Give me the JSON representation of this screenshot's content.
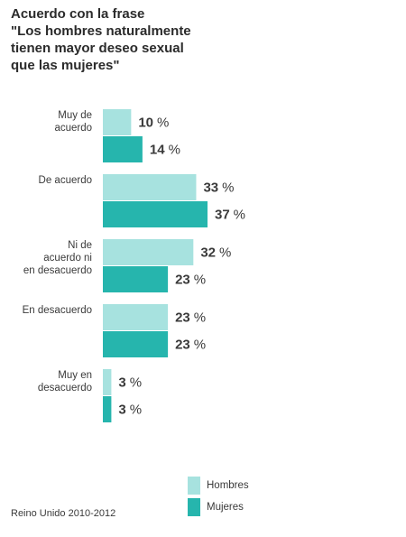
{
  "chart_data": {
    "type": "bar",
    "orientation": "horizontal",
    "title_lines": [
      "Acuerdo con la frase",
      "\"Los hombres naturalmente",
      "tienen mayor deseo sexual",
      "que las mujeres\""
    ],
    "categories": [
      [
        "Muy de",
        "acuerdo"
      ],
      [
        "De acuerdo"
      ],
      [
        "Ni de",
        "acuerdo ni",
        "en desacuerdo"
      ],
      [
        "En desacuerdo"
      ],
      [
        "Muy en",
        "desacuerdo"
      ]
    ],
    "series": [
      {
        "name": "Hombres",
        "color": "#a7e2df",
        "values": [
          10,
          33,
          32,
          23,
          3
        ]
      },
      {
        "name": "Mujeres",
        "color": "#26b5ad",
        "values": [
          14,
          37,
          23,
          23,
          3
        ]
      }
    ],
    "unit": "%",
    "xlim": [
      0,
      40
    ],
    "grid": false,
    "legend": "bottom",
    "footnote": "Reino Unido 2010-2012"
  }
}
